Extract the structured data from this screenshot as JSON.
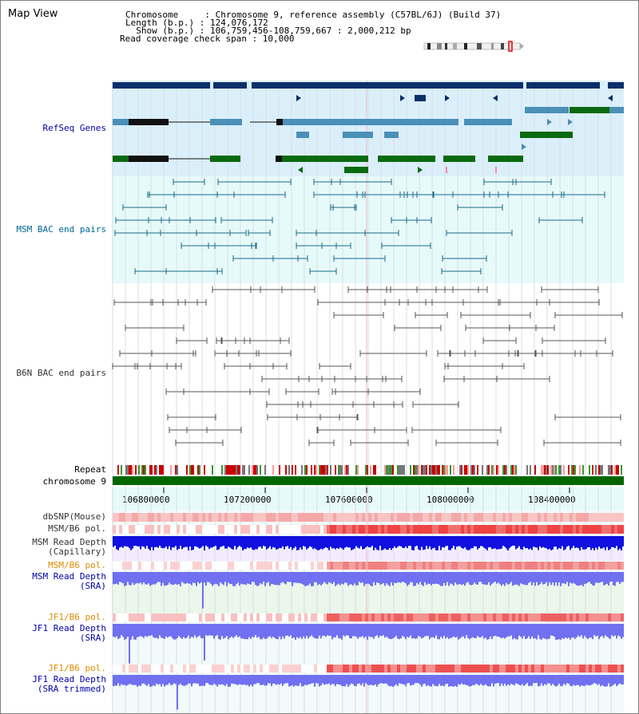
{
  "window": {
    "title": "Map View"
  },
  "header": {
    "line1": "Chromosome     : Chromosome 9, reference assembly (C57BL/6J) (Build 37)",
    "line2": "Length (b.p.) : 124,076,172",
    "line3": "  Show (b.p.) : 106,759,456-108,759,667 : 2,000,212 bp",
    "line4": "Read coverage check span : 10,000"
  },
  "tracks": {
    "refseq": "RefSeq Genes",
    "msm_bac": "MSM BAC end pairs",
    "b6n_bac": "B6N BAC end pairs",
    "repeat": "Repeat",
    "chromosome": "chromosome 9",
    "dbsnp": "dbSNP(Mouse)",
    "msm_pol1": "MSM/B6 pol.",
    "msm_depth_cap": "MSM Read Depth\n(Capillary)",
    "msm_pol2": "MSM/B6 pol.",
    "msm_depth_sra": "MSM Read Depth\n(SRA)",
    "jf1_pol1": "JF1/B6 pol.",
    "jf1_depth_sra": "JF1 Read Depth\n(SRA)",
    "jf1_pol2": "JF1/B6 pol.",
    "jf1_depth_trim": "JF1 Read Depth\n(SRA trimmed)"
  },
  "axis": {
    "ticks": [
      "106800000",
      "107200000",
      "107600000",
      "108000000",
      "108400000"
    ]
  },
  "colors": {
    "navy": "#0a2f6b",
    "refseq_blue": "#4a90b8",
    "refseq_green": "#0a6a10",
    "msm_bac": "#1a6a8a",
    "b6n_bac": "#555555",
    "chrom_green": "#006600",
    "depth_blue": "#1010e0",
    "depth_light": "#7070f0"
  }
}
